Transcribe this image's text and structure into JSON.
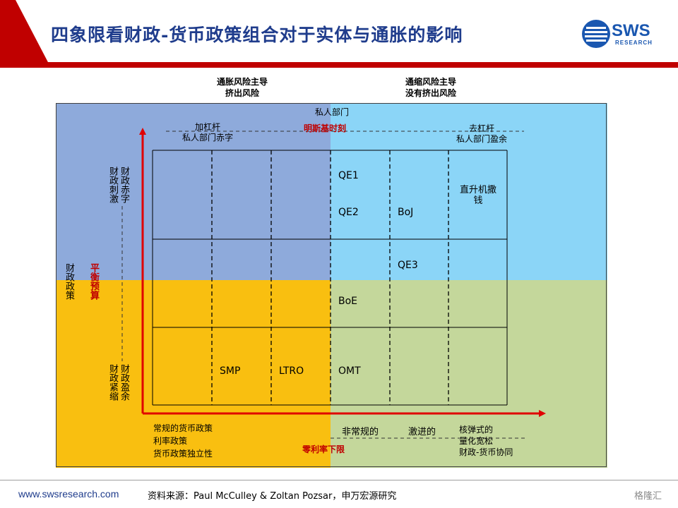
{
  "header": {
    "title": "四象限看财政-货币政策组合对于实体与通胀的影响",
    "logo": "SWS",
    "logo_sub": "RESEARCH"
  },
  "columns": {
    "left": [
      "通胀风险主导",
      "挤出风险"
    ],
    "right": [
      "通缩风险主导",
      "没有挤出风险"
    ]
  },
  "private_sector": {
    "title": "私人部门",
    "minsky": "明斯基时刻",
    "left": [
      "加杠杆",
      "私人部门赤字"
    ],
    "right": [
      "去杠杆",
      "私人部门盈余"
    ]
  },
  "fiscal": {
    "policy": "财政政策",
    "balanced": "平衡预算",
    "stimulus_a": "财政刺激",
    "stimulus_b": "财政赤字",
    "tight_a": "财政紧缩",
    "tight_b": "财政盈余"
  },
  "cells": {
    "qe1": "QE1",
    "qe2": "QE2",
    "boj": "BoJ",
    "heli": [
      "直升机撒",
      "钱"
    ],
    "qe3": "QE3",
    "boe": "BoE",
    "smp": "SMP",
    "ltro": "LTRO",
    "omt": "OMT"
  },
  "monetary": {
    "conventional": [
      "常规的货币政策",
      "利率政策",
      "货币政策独立性"
    ],
    "zero_bound": "零利率下限",
    "unconventional": "非常规的",
    "aggressive": "激进的",
    "elastic": [
      "核弹式的",
      "量化宽松",
      "财政-货币协同"
    ]
  },
  "footer": {
    "url": "www.swsresearch.com",
    "source": "资料来源：Paul McCulley & Zoltan Pozsar，申万宏源研究",
    "watermark": "格隆汇"
  }
}
